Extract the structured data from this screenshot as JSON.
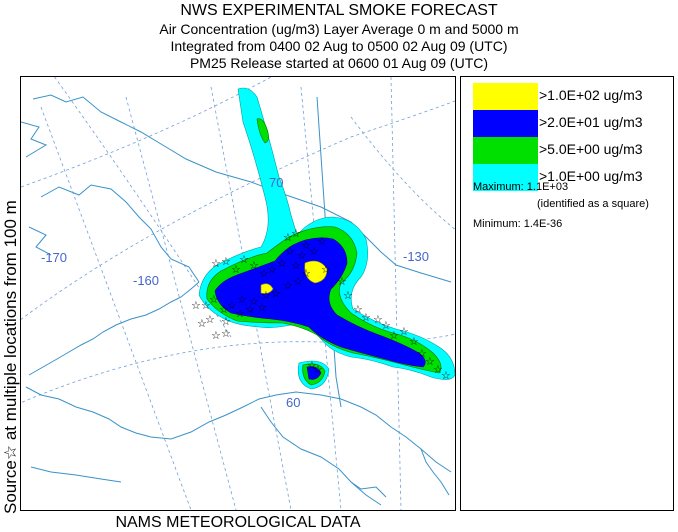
{
  "title": {
    "line1": "NWS EXPERIMENTAL SMOKE FORECAST",
    "line2": "Air Concentration (ug/m3) Layer Average    0 m and  5000 m",
    "line3": "Integrated from 0400 02 Aug to 0500 02 Aug 09 (UTC)",
    "line4": "PM25 Release started at 0600 01 Aug 09 (UTC)"
  },
  "side_label": "Source☆ at multiple locations  from   100 m",
  "footer": "NAMS METEOROLOGICAL DATA",
  "map": {
    "longitude_labels": [
      "-170",
      "-160",
      "-130"
    ],
    "latitude_labels": [
      "70",
      "60"
    ],
    "land_color": "#ffffff",
    "graticule_color": "#6f9fd8",
    "coast_color": "#3a92c9"
  },
  "legend": {
    "items": [
      {
        "label": ">1.0E+02 ug/m3",
        "color": "#ffff00"
      },
      {
        "label": ">2.0E+01 ug/m3",
        "color": "#0000ff"
      },
      {
        "label": ">5.0E+00 ug/m3",
        "color": "#00e000"
      },
      {
        "label": ">1.0E+00 ug/m3",
        "color": "#00ffff"
      }
    ],
    "maximum": "Maximum: 1.1E+03",
    "maximum_note": "(identified as a square)",
    "minimum": "Minimum: 1.4E-36"
  }
}
